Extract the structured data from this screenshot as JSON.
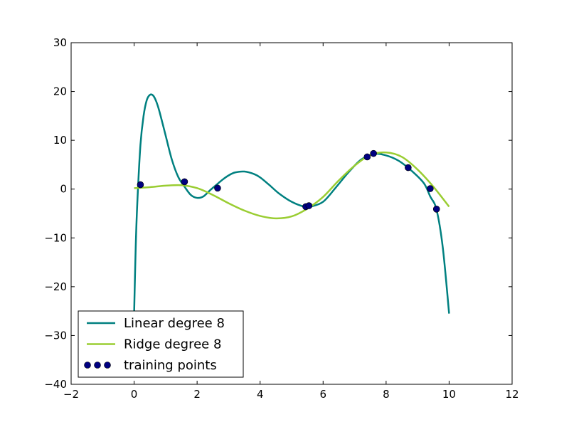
{
  "chart_data": {
    "type": "line",
    "title": "",
    "xlabel": "",
    "ylabel": "",
    "xlim": [
      -2,
      12
    ],
    "ylim": [
      -40,
      30
    ],
    "xticks": [
      -2,
      0,
      2,
      4,
      6,
      8,
      10,
      12
    ],
    "yticks": [
      -40,
      -30,
      -20,
      -10,
      0,
      10,
      20,
      30
    ],
    "xtick_labels": [
      "−2",
      "0",
      "2",
      "4",
      "6",
      "8",
      "10",
      "12"
    ],
    "ytick_labels": [
      "−40",
      "−30",
      "−20",
      "−10",
      "0",
      "10",
      "20",
      "30"
    ],
    "grid": false,
    "legend_position": "lower-left",
    "series": [
      {
        "name": "Linear degree 8",
        "type": "line",
        "color": "#008080",
        "x": [
          0.0,
          0.05,
          0.1,
          0.2,
          0.3,
          0.4,
          0.5,
          0.6,
          0.7,
          0.8,
          1.0,
          1.2,
          1.4,
          1.6,
          1.8,
          2.0,
          2.2,
          2.4,
          2.6,
          2.8,
          3.0,
          3.2,
          3.5,
          3.8,
          4.0,
          4.3,
          4.6,
          5.0,
          5.4,
          5.6,
          6.0,
          6.4,
          6.8,
          7.2,
          7.6,
          8.0,
          8.4,
          8.8,
          9.2,
          9.4,
          9.6,
          9.8,
          10.0
        ],
        "y": [
          -25.5,
          -12.0,
          -3.0,
          9.0,
          15.0,
          18.2,
          19.3,
          19.2,
          18.0,
          16.0,
          11.0,
          6.0,
          2.5,
          0.5,
          -1.2,
          -1.8,
          -1.5,
          -0.3,
          0.8,
          1.9,
          2.8,
          3.4,
          3.6,
          3.1,
          2.4,
          0.8,
          -0.9,
          -2.6,
          -3.6,
          -3.6,
          -2.6,
          0.3,
          3.4,
          6.0,
          7.2,
          6.9,
          5.8,
          3.8,
          1.2,
          -1.5,
          -4.2,
          -12.0,
          -25.5
        ]
      },
      {
        "name": "Ridge degree 8",
        "type": "line",
        "color": "#9acd32",
        "x": [
          0.0,
          0.5,
          1.0,
          1.5,
          2.0,
          2.5,
          3.0,
          3.5,
          4.0,
          4.5,
          5.0,
          5.5,
          6.0,
          6.5,
          7.0,
          7.5,
          8.0,
          8.5,
          9.0,
          9.5,
          10.0
        ],
        "y": [
          0.2,
          0.4,
          0.7,
          0.8,
          0.2,
          -1.2,
          -2.9,
          -4.4,
          -5.5,
          -6.0,
          -5.6,
          -4.0,
          -1.6,
          1.8,
          4.8,
          7.0,
          7.5,
          6.6,
          4.0,
          0.5,
          -3.6
        ]
      },
      {
        "name": "training points",
        "type": "scatter",
        "color": "#000080",
        "x": [
          0.2,
          1.6,
          2.65,
          5.45,
          5.55,
          7.4,
          7.6,
          8.7,
          9.4,
          9.6
        ],
        "y": [
          0.9,
          1.5,
          0.2,
          -3.6,
          -3.4,
          6.6,
          7.3,
          4.4,
          0.1,
          -4.1
        ]
      }
    ]
  }
}
